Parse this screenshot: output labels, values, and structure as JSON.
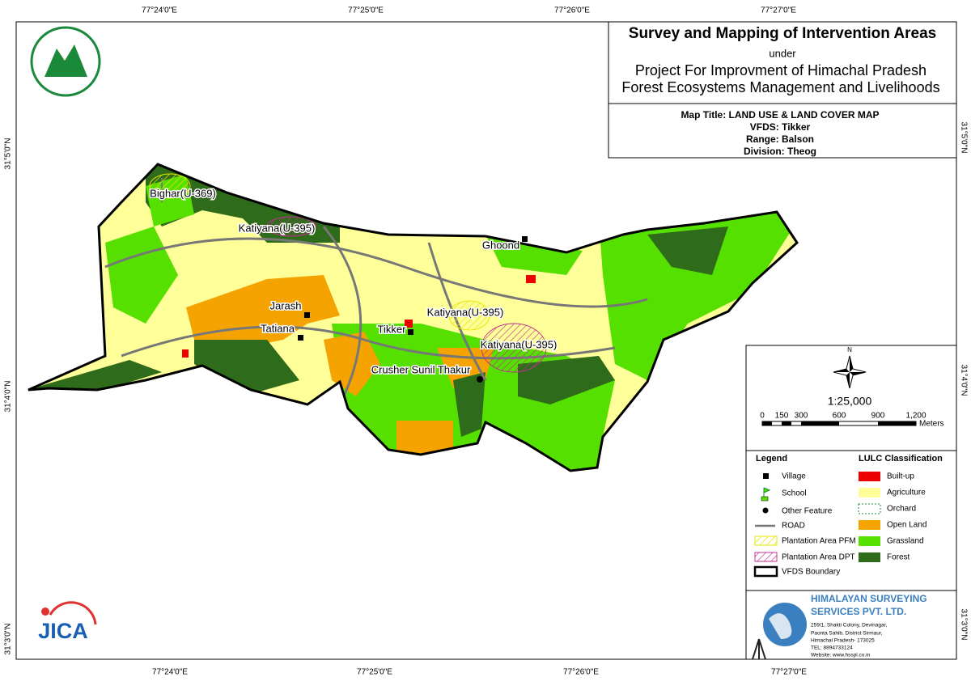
{
  "grid_labels": {
    "top": [
      "77°24'0\"E",
      "77°25'0\"E",
      "77°26'0\"E",
      "77°27'0\"E"
    ],
    "bottom": [
      "77°24'0\"E",
      "77°25'0\"E",
      "77°26'0\"E",
      "77°27'0\"E"
    ],
    "left": [
      "31°5'0\"N",
      "31°4'0\"N",
      "31°3'0\"N"
    ],
    "right": [
      "31°5'0\"N",
      "31°4'0\"N",
      "31°3'0\"N"
    ]
  },
  "header": {
    "title": "Survey and Mapping of Intervention Areas",
    "under": "under",
    "project_line1": "Project For Improvment of Himachal Pradesh",
    "project_line2": "Forest Ecosystems Management and Livelihoods"
  },
  "map_info": {
    "map_title": "Map Title: LAND USE & LAND COVER MAP",
    "vfds": "VFDS: Tikker",
    "range": "Range: Balson",
    "division": "Division: Theog"
  },
  "places": [
    "Bighar(U-369)",
    "Katiyana(U-395)",
    "Ghoond",
    "Jarash",
    "Tatiana",
    "Tikker",
    "Katiyana(U-395)",
    "Katiyana(U-395)",
    "Crusher Sunil Thakur"
  ],
  "north": "N",
  "scale": {
    "ratio": "1:25,000",
    "ticks": [
      "0",
      "150",
      "300",
      "600",
      "900",
      "1,200"
    ],
    "unit": "Meters"
  },
  "legend": {
    "title": "Legend",
    "items": [
      "Village",
      "School",
      "Other Feature",
      "ROAD",
      "Plantation Area PFM",
      "Plantation Area DPT",
      "VFDS Boundary"
    ]
  },
  "lulc": {
    "title": "LULC Classification",
    "items": [
      "Built-up",
      "Agriculture",
      "Orchard",
      "Open Land",
      "Grassland",
      "Forest"
    ]
  },
  "company": {
    "name1": "HIMALAYAN SURVEYING",
    "name2": "SERVICES PVT. LTD.",
    "address": [
      "259/1, Shakti Colony, Devinagar,",
      "Paonta Sahib, District Sirmaur,",
      "Himachal Pradesh- 173025",
      "TEL: 8894733124",
      "Website: www.hsspl.co.in"
    ]
  },
  "jica": "JICA"
}
